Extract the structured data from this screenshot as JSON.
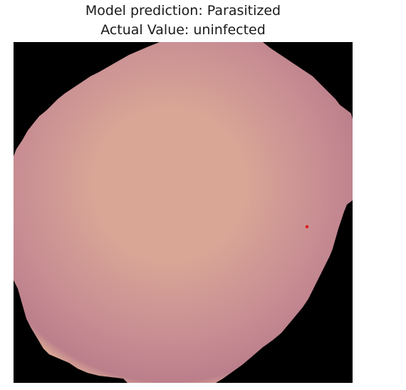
{
  "figure": {
    "title_line1": "Model prediction: Parasitized",
    "title_line2": "Actual Value: uninfected"
  },
  "image": {
    "subject": "blood-cell-micrograph",
    "colors": {
      "background": "#000000",
      "cell_center": "#d9a696",
      "cell_mid": "#c88e93",
      "cell_edge": "#bb7f8b",
      "cell_rim": "#e6b898",
      "marker": "#e01818"
    }
  }
}
